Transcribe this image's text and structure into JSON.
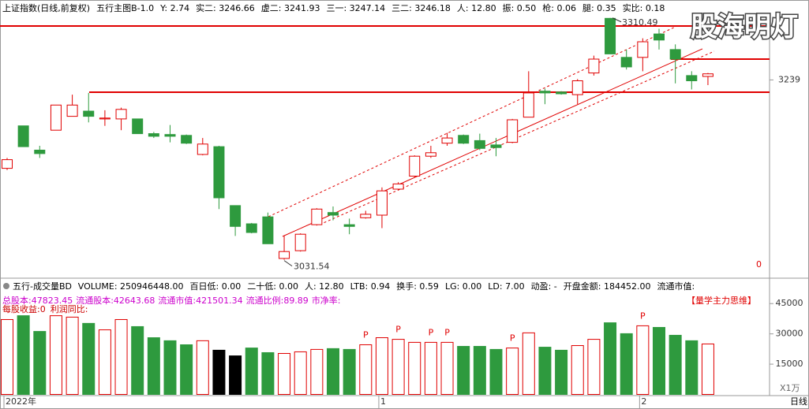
{
  "watermark": "股海明灯",
  "chart_data": [
    {
      "type": "candlestick",
      "header": [
        "上证指数(日线,前复权)",
        "五行主图B-1.0",
        "Y: 2.74",
        "实二: 3246.66",
        "虚二: 3241.93",
        "三一: 3247.14",
        "三二: 3246.18",
        "人: 12.80",
        "振: 0.50",
        "枪: 0.06",
        "腿: 0.35",
        "实比: 0.18"
      ],
      "categories": [
        "2022年",
        null,
        null,
        null,
        null,
        null,
        null,
        null,
        null,
        null,
        null,
        null,
        null,
        null,
        null,
        null,
        null,
        null,
        null,
        null,
        null,
        null,
        null,
        "1",
        null,
        null,
        null,
        null,
        null,
        null,
        null,
        null,
        null,
        null,
        null,
        null,
        null,
        null,
        null,
        "2",
        null,
        null,
        null,
        null
      ],
      "open": [
        3137,
        3186,
        3158,
        3181,
        3197,
        3203,
        3194,
        3194,
        3194,
        3177,
        3176,
        3175,
        3153,
        3162,
        3094,
        3073,
        3081,
        3033,
        3042,
        3072,
        3086,
        3072,
        3080,
        3083,
        3113,
        3128,
        3151,
        3166,
        3175,
        3169,
        3164,
        3167,
        3196,
        3226,
        3225,
        3222,
        3247,
        3310,
        3265,
        3265,
        3292,
        3274,
        3244,
        3243
      ],
      "high": [
        3149,
        3186,
        3163,
        3210,
        3222,
        3224,
        3204,
        3207,
        3194,
        3179,
        3187,
        3176,
        3172,
        3163,
        3094,
        3074,
        3086,
        3059,
        3062,
        3091,
        3093,
        3079,
        3088,
        3115,
        3121,
        3152,
        3163,
        3178,
        3176,
        3177,
        3172,
        3194,
        3249,
        3229,
        3226,
        3240,
        3267,
        3310.49,
        3274,
        3287,
        3298,
        3280,
        3249,
        3247
      ],
      "low": [
        3135,
        3162,
        3149,
        3181,
        3197,
        3190,
        3186,
        3181,
        3177,
        3172,
        3167,
        3165,
        3152,
        3090,
        3059,
        3062,
        3050,
        3031.54,
        3041,
        3071,
        3077,
        3061,
        3079,
        3068,
        3112,
        3127,
        3149,
        3163,
        3165,
        3158,
        3151,
        3166,
        3196,
        3211,
        3222,
        3211,
        3244,
        3269,
        3251,
        3249,
        3274,
        3235,
        3228,
        3233
      ],
      "close": [
        3147,
        3162,
        3154,
        3210,
        3210,
        3197,
        3195,
        3205,
        3177,
        3174,
        3174,
        3166,
        3165,
        3103,
        3070,
        3063,
        3050,
        3041,
        3061,
        3090,
        3083,
        3070,
        3084,
        3111,
        3119,
        3151,
        3155,
        3172,
        3166,
        3160,
        3161,
        3193,
        3224,
        3224,
        3223,
        3238,
        3263,
        3269,
        3254,
        3283,
        3285,
        3263,
        3238,
        3246
      ],
      "up_color": "#e00000",
      "down_color": "#2e9a3e",
      "ylim": [
        3013,
        3313
      ],
      "yticks": [
        3239
      ],
      "status_value": 0
    },
    {
      "type": "bar",
      "header": [
        "五行-成交量BD",
        "VOLUME: 250946448.00",
        "百日低: 0.00",
        "二十低: 0.00",
        "人: 12.80",
        "LTB: 0.94",
        "换手: 0.59",
        "LG: 0.00",
        "LD: 7.00",
        "动盈: -",
        "开盘金额: 184452.00",
        "流通市值:"
      ],
      "info": [
        "总股本:47823.45",
        "流通股本:42643.68",
        "流通市值:421501.34",
        "流通比例:89.89",
        "市净率:"
      ],
      "info2": [
        "每股收益:0",
        "利润同比:"
      ],
      "tag": "【量学主力思维】",
      "unit_label": "X1万",
      "values": [
        37100,
        39000,
        31200,
        39000,
        38300,
        35200,
        32000,
        37100,
        33600,
        28100,
        26600,
        24600,
        26600,
        21900,
        19100,
        23000,
        20700,
        20300,
        21100,
        22300,
        22700,
        22300,
        24600,
        28100,
        27300,
        25800,
        25800,
        25800,
        23800,
        23800,
        22300,
        23000,
        30500,
        23400,
        21900,
        24200,
        27300,
        35500,
        30100,
        34000,
        33200,
        29300,
        26600,
        25000
      ],
      "colors": [
        "#e00000",
        "#2e9a3e",
        "#2e9a3e",
        "#e00000",
        "#e00000",
        "#2e9a3e",
        "#e00000",
        "#e00000",
        "#2e9a3e",
        "#2e9a3e",
        "#2e9a3e",
        "#2e9a3e",
        "#e00000",
        "#000000",
        "#000000",
        "#2e9a3e",
        "#2e9a3e",
        "#e00000",
        "#e00000",
        "#e00000",
        "#2e9a3e",
        "#2e9a3e",
        "#e00000",
        "#e00000",
        "#e00000",
        "#e00000",
        "#e00000",
        "#e00000",
        "#2e9a3e",
        "#2e9a3e",
        "#2e9a3e",
        "#e00000",
        "#e00000",
        "#2e9a3e",
        "#2e9a3e",
        "#e00000",
        "#e00000",
        "#2e9a3e",
        "#2e9a3e",
        "#e00000",
        "#2e9a3e",
        "#2e9a3e",
        "#2e9a3e",
        "#e00000"
      ],
      "hollow_color": "#e00000",
      "signals": [
        null,
        null,
        null,
        null,
        null,
        null,
        null,
        null,
        null,
        null,
        null,
        null,
        null,
        null,
        null,
        null,
        null,
        null,
        null,
        null,
        null,
        null,
        "P",
        null,
        "P",
        null,
        "P",
        "P",
        null,
        null,
        null,
        "P",
        null,
        null,
        null,
        null,
        null,
        null,
        null,
        "P",
        null,
        null,
        null,
        null
      ],
      "ylim": [
        0,
        49000
      ],
      "yticks": [
        15000,
        30000,
        45000
      ]
    }
  ],
  "footer": {
    "period": "日线"
  }
}
